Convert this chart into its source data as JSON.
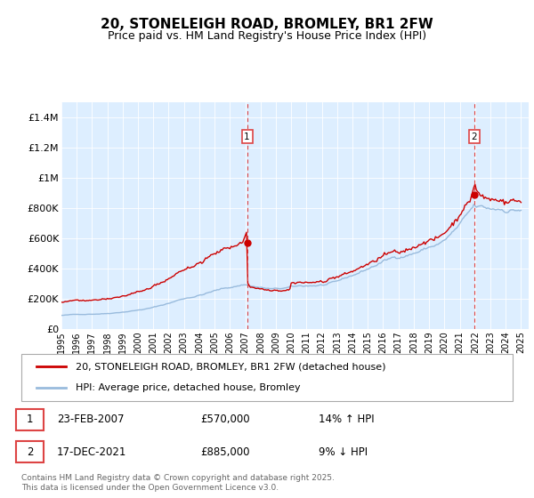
{
  "title": "20, STONELEIGH ROAD, BROMLEY, BR1 2FW",
  "subtitle": "Price paid vs. HM Land Registry's House Price Index (HPI)",
  "red_line_label": "20, STONELEIGH ROAD, BROMLEY, BR1 2FW (detached house)",
  "blue_line_label": "HPI: Average price, detached house, Bromley",
  "footer": "Contains HM Land Registry data © Crown copyright and database right 2025.\nThis data is licensed under the Open Government Licence v3.0.",
  "annotation1": {
    "num": "1",
    "date": "23-FEB-2007",
    "price": "£570,000",
    "pct": "14% ↑ HPI"
  },
  "annotation2": {
    "num": "2",
    "date": "17-DEC-2021",
    "price": "£885,000",
    "pct": "9% ↓ HPI"
  },
  "ylim": [
    0,
    1500000
  ],
  "yticks": [
    0,
    200000,
    400000,
    600000,
    800000,
    1000000,
    1200000,
    1400000
  ],
  "ytick_labels": [
    "£0",
    "£200K",
    "£400K",
    "£600K",
    "£800K",
    "£1M",
    "£1.2M",
    "£1.4M"
  ],
  "red_color": "#cc0000",
  "blue_color": "#99bbdd",
  "vline_color": "#dd4444",
  "plot_bg": "#ddeeff",
  "sale1_x": 2007.12,
  "sale1_y": 570000,
  "sale2_x": 2021.95,
  "sale2_y": 885000,
  "xlim_left": 1995.0,
  "xlim_right": 2025.5
}
